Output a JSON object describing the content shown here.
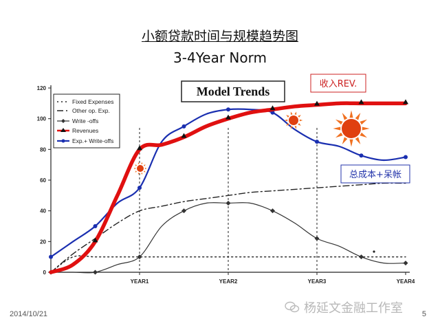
{
  "slide": {
    "title": "小额贷款时间与规模趋势图",
    "subtitle": "3-4Year Norm",
    "date": "2014/10/21",
    "page": "5",
    "watermark": "杨延文金融工作室"
  },
  "chart_data": {
    "type": "line",
    "title": "Model Trends",
    "ylim": [
      0,
      120
    ],
    "xlim": [
      0,
      4
    ],
    "yticks": [
      0,
      20,
      40,
      60,
      80,
      100,
      120
    ],
    "xticks": [
      {
        "x": 1,
        "label": "YEAR1"
      },
      {
        "x": 2,
        "label": "YEAR2"
      },
      {
        "x": 3,
        "label": "YEAR3"
      },
      {
        "x": 4,
        "label": "YEAR4"
      }
    ],
    "grid": false,
    "legend_position": "top-left",
    "colors": {
      "fixed": "#222222",
      "other": "#222222",
      "writeoffs": "#333333",
      "revenues": "#e01010",
      "exp": "#1a2fb0",
      "annotation_rev": "#cc2222",
      "annotation_cost": "#2233aa"
    },
    "series": [
      {
        "key": "fixed",
        "name": "Fixed Expenses",
        "style": "dotted",
        "x": [
          0,
          0.25,
          0.5,
          0.75,
          1,
          1.25,
          1.5,
          1.75,
          2,
          2.25,
          2.5,
          2.75,
          3,
          3.25,
          3.5,
          3.75,
          4
        ],
        "y": [
          0,
          10,
          10,
          10,
          10,
          10,
          10,
          10,
          10,
          10,
          10,
          10,
          10,
          10,
          10,
          10,
          10
        ]
      },
      {
        "key": "other",
        "name": "Other op. Exp.",
        "style": "dashdot",
        "x": [
          0,
          0.25,
          0.5,
          0.75,
          1,
          1.25,
          1.5,
          1.75,
          2,
          2.25,
          2.5,
          2.75,
          3,
          3.25,
          3.5,
          3.75,
          4
        ],
        "y": [
          0,
          12,
          22,
          32,
          40,
          43,
          46,
          48,
          50,
          52,
          53,
          54,
          55,
          56,
          57,
          58,
          58
        ]
      },
      {
        "key": "writeoffs",
        "name": "Write -offs",
        "style": "solid-diamond",
        "x": [
          0,
          0.25,
          0.5,
          0.75,
          1,
          1.25,
          1.5,
          1.75,
          2,
          2.25,
          2.5,
          2.75,
          3,
          3.25,
          3.5,
          3.75,
          4
        ],
        "y": [
          0,
          0,
          0,
          5,
          10,
          30,
          40,
          45,
          45,
          45,
          40,
          32,
          22,
          17,
          10,
          6,
          6
        ]
      },
      {
        "key": "revenues",
        "name": "Revenues",
        "style": "thick-triangle",
        "x": [
          0,
          0.25,
          0.5,
          0.75,
          1,
          1.25,
          1.5,
          1.75,
          2,
          2.25,
          2.5,
          2.75,
          3,
          3.25,
          3.5,
          3.75,
          4
        ],
        "y": [
          0,
          5,
          20,
          50,
          80,
          83,
          88,
          95,
          100,
          104,
          106,
          108,
          109,
          110,
          110,
          110,
          110
        ]
      },
      {
        "key": "exp",
        "name": "Exp.+ Write-offs",
        "style": "solid-circle",
        "x": [
          0,
          0.25,
          0.5,
          0.75,
          1,
          1.25,
          1.5,
          1.75,
          2,
          2.25,
          2.5,
          2.75,
          3,
          3.25,
          3.5,
          3.75,
          4
        ],
        "y": [
          10,
          20,
          30,
          45,
          55,
          85,
          95,
          103,
          106,
          106,
          104,
          93,
          85,
          82,
          76,
          73,
          75
        ]
      }
    ],
    "annotations": [
      {
        "key": "rev_label",
        "text": "收入REV."
      },
      {
        "key": "cost_label",
        "text": "总成本+呆帐"
      }
    ]
  }
}
